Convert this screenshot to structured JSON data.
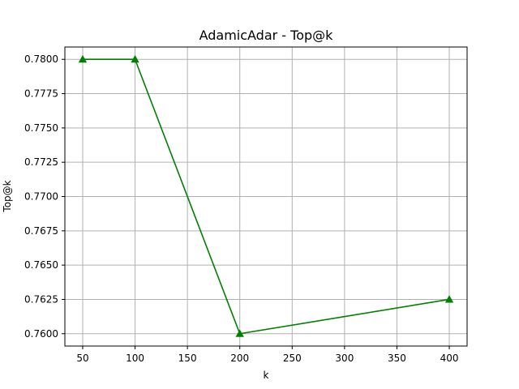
{
  "chart_data": {
    "type": "line",
    "title": "AdamicAdar - Top@k",
    "xlabel": "k",
    "ylabel": "Top@k",
    "x": [
      50,
      100,
      200,
      400
    ],
    "series": [
      {
        "values": [
          0.78,
          0.78,
          0.76,
          0.7625
        ],
        "color": "#008000",
        "marker": "triangle-up"
      }
    ],
    "xlim": [
      33,
      417
    ],
    "ylim": [
      0.7591,
      0.7809
    ],
    "xticks": [
      50,
      100,
      150,
      200,
      250,
      300,
      350,
      400
    ],
    "xtick_labels": [
      "50",
      "100",
      "150",
      "200",
      "250",
      "300",
      "350",
      "400"
    ],
    "yticks": [
      0.76,
      0.7625,
      0.765,
      0.7675,
      0.77,
      0.7725,
      0.775,
      0.7775,
      0.78
    ],
    "ytick_labels": [
      "0.7600",
      "0.7625",
      "0.7650",
      "0.7675",
      "0.7700",
      "0.7725",
      "0.7750",
      "0.7775",
      "0.7800"
    ],
    "grid": true,
    "grid_color": "#b0b0b0"
  }
}
